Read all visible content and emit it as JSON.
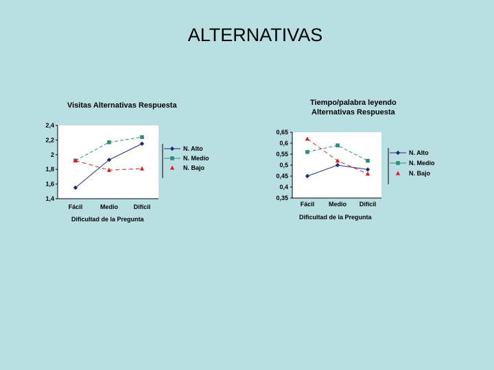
{
  "slide": {
    "title": "ALTERNATIVAS"
  },
  "colors": {
    "n_alto": "#1f2a7a",
    "n_medio": "#2e8b7a",
    "n_bajo": "#d42020",
    "plot_bg": "#ffffff"
  },
  "chart_data": [
    {
      "type": "line",
      "title": "Visitas Alternativas Respuesta",
      "xlabel": "Dificultad de la Pregunta",
      "ylabel": "",
      "categories": [
        "Fácil",
        "Medio",
        "Difícil"
      ],
      "ylim": [
        1.4,
        2.4
      ],
      "yticks": [
        "2,4",
        "2,2",
        "2",
        "1,8",
        "1,6",
        "1,4"
      ],
      "ytick_values": [
        2.4,
        2.2,
        2.0,
        1.8,
        1.6,
        1.4
      ],
      "legend": "right",
      "series": [
        {
          "name": "N. Alto",
          "values": [
            1.55,
            1.93,
            2.15
          ]
        },
        {
          "name": "N. Medio",
          "values": [
            1.92,
            2.17,
            2.24
          ]
        },
        {
          "name": "N. Bajo",
          "values": [
            1.92,
            1.79,
            1.81
          ]
        }
      ]
    },
    {
      "type": "line",
      "title": "Tiempo/palabra leyendo Alternativas Respuesta",
      "title_lines": [
        "Tiempo/palabra leyendo",
        "Alternativas Respuesta"
      ],
      "xlabel": "Dificultad de la Pregunta",
      "ylabel": "",
      "categories": [
        "Fácil",
        "Medio",
        "Difícil"
      ],
      "ylim": [
        0.35,
        0.65
      ],
      "yticks": [
        "0,65",
        "0,6",
        "0,55",
        "0,5",
        "0,45",
        "0,4",
        "0,35"
      ],
      "ytick_values": [
        0.65,
        0.6,
        0.55,
        0.5,
        0.45,
        0.4,
        0.35
      ],
      "legend": "right",
      "series": [
        {
          "name": "N. Alto",
          "values": [
            0.45,
            0.5,
            0.48
          ]
        },
        {
          "name": "N. Medio",
          "values": [
            0.56,
            0.59,
            0.52
          ]
        },
        {
          "name": "N. Bajo",
          "values": [
            0.62,
            0.52,
            0.46
          ]
        }
      ]
    }
  ]
}
